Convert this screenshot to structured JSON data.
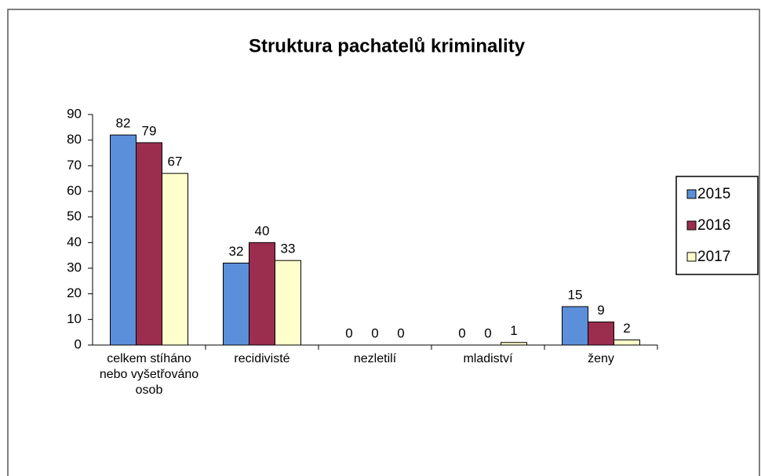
{
  "chart_data": {
    "type": "bar",
    "title": "Struktura pachatelů kriminality",
    "categories": [
      "celkem stíháno nebo vyšetřováno osob",
      "recidivisté",
      "nezletilí",
      "mladiství",
      "ženy"
    ],
    "series": [
      {
        "name": "2015",
        "color": "#5b8fd9",
        "values": [
          82,
          32,
          0,
          0,
          15
        ]
      },
      {
        "name": "2016",
        "color": "#9b2d4f",
        "values": [
          79,
          40,
          0,
          0,
          9
        ]
      },
      {
        "name": "2017",
        "color": "#ffffcc",
        "values": [
          67,
          33,
          0,
          1,
          2
        ]
      }
    ],
    "ylim": [
      0,
      90
    ],
    "yticks": [
      0,
      10,
      20,
      30,
      40,
      50,
      60,
      70,
      80,
      90
    ],
    "legend": "right"
  }
}
